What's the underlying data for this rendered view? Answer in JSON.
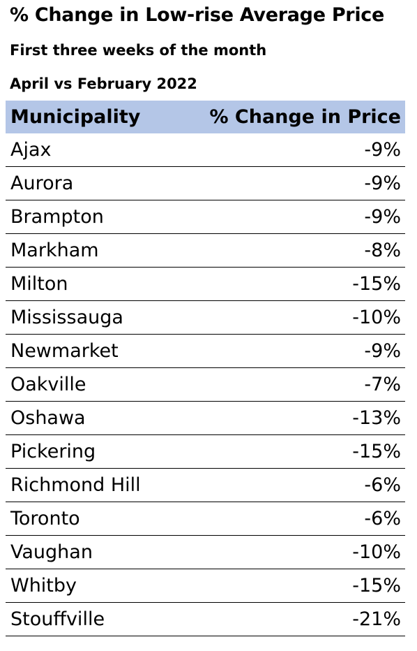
{
  "chart_data": {
    "type": "table",
    "title": "% Change in Low-rise Average Price",
    "subtitle_lines": [
      "First three weeks of the month",
      "April vs February 2022"
    ],
    "columns": [
      "Municipality",
      "% Change in Price"
    ],
    "rows": [
      {
        "municipality": "Ajax",
        "change": "-9%"
      },
      {
        "municipality": "Aurora",
        "change": "-9%"
      },
      {
        "municipality": "Brampton",
        "change": "-9%"
      },
      {
        "municipality": "Markham",
        "change": "-8%"
      },
      {
        "municipality": "Milton",
        "change": "-15%"
      },
      {
        "municipality": "Mississauga",
        "change": "-10%"
      },
      {
        "municipality": "Newmarket",
        "change": "-9%"
      },
      {
        "municipality": "Oakville",
        "change": "-7%"
      },
      {
        "municipality": "Oshawa",
        "change": "-13%"
      },
      {
        "municipality": "Pickering",
        "change": "-15%"
      },
      {
        "municipality": "Richmond Hill",
        "change": "-6%"
      },
      {
        "municipality": "Toronto",
        "change": "-6%"
      },
      {
        "municipality": "Vaughan",
        "change": "-10%"
      },
      {
        "municipality": "Whitby",
        "change": "-15%"
      },
      {
        "municipality": "Stouffville",
        "change": "-21%"
      }
    ],
    "header_color": "#b4c6e7",
    "grid": true
  }
}
